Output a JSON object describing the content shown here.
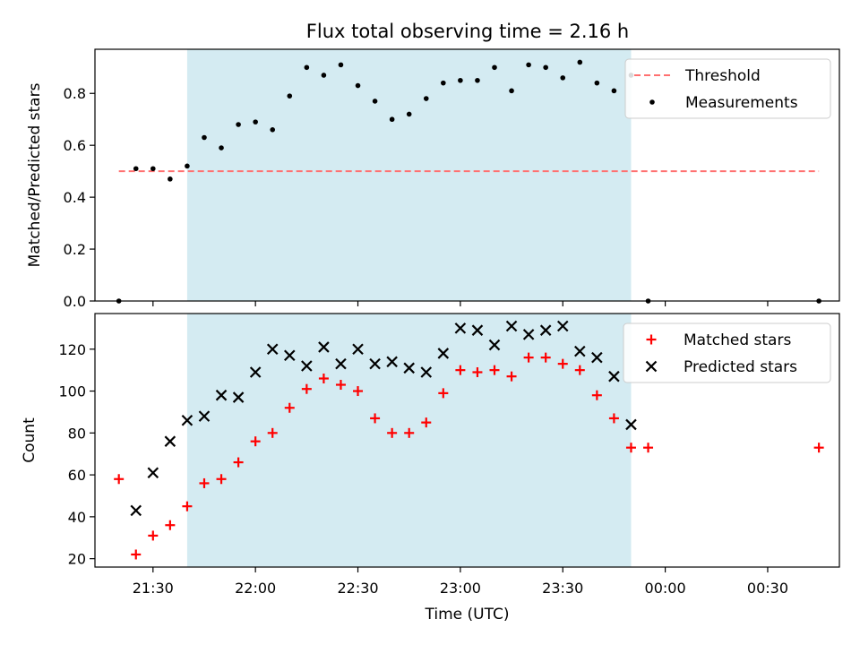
{
  "title": "Flux total observing time = 2.16 h",
  "chart_data": [
    {
      "type": "scatter",
      "ylabel": "Matched/Predicted stars",
      "ylim": [
        0,
        0.97
      ],
      "xlim": [
        "21:13",
        "00:51"
      ],
      "yticks": [
        0.0,
        0.2,
        0.4,
        0.6,
        0.8
      ],
      "ytick_labels": [
        "0.0",
        "0.2",
        "0.4",
        "0.6",
        "0.8"
      ],
      "shaded_interval": [
        "21:40",
        "23:50"
      ],
      "threshold": {
        "name": "Threshold",
        "value": 0.5,
        "x": [
          "21:20",
          "00:45"
        ],
        "color": "#ff7070"
      },
      "series": [
        {
          "name": "Measurements",
          "color": "#000000",
          "x": [
            "21:20",
            "21:25",
            "21:30",
            "21:35",
            "21:40",
            "21:45",
            "21:50",
            "21:55",
            "22:00",
            "22:05",
            "22:10",
            "22:15",
            "22:20",
            "22:25",
            "22:30",
            "22:35",
            "22:40",
            "22:45",
            "22:50",
            "22:55",
            "23:00",
            "23:05",
            "23:10",
            "23:15",
            "23:20",
            "23:25",
            "23:30",
            "23:35",
            "23:40",
            "23:45",
            "23:50",
            "23:55",
            "00:45"
          ],
          "y": [
            0.0,
            0.51,
            0.51,
            0.47,
            0.52,
            0.63,
            0.59,
            0.68,
            0.69,
            0.66,
            0.79,
            0.9,
            0.87,
            0.91,
            0.83,
            0.77,
            0.7,
            0.72,
            0.78,
            0.84,
            0.85,
            0.85,
            0.9,
            0.81,
            0.91,
            0.9,
            0.86,
            0.92,
            0.84,
            0.81,
            0.87,
            0.0,
            0.0
          ]
        }
      ]
    },
    {
      "type": "scatter",
      "xlabel": "Time (UTC)",
      "ylabel": "Count",
      "ylim": [
        16,
        137
      ],
      "xlim": [
        "21:13",
        "00:51"
      ],
      "yticks": [
        20,
        40,
        60,
        80,
        100,
        120
      ],
      "xticks": [
        "21:30",
        "22:00",
        "22:30",
        "23:00",
        "23:30",
        "00:00",
        "00:30"
      ],
      "shaded_interval": [
        "21:40",
        "23:50"
      ],
      "legend": "top-right",
      "series": [
        {
          "name": "Matched stars",
          "marker": "plus",
          "color": "#ff0000",
          "x": [
            "21:20",
            "21:25",
            "21:30",
            "21:35",
            "21:40",
            "21:45",
            "21:50",
            "21:55",
            "22:00",
            "22:05",
            "22:10",
            "22:15",
            "22:20",
            "22:25",
            "22:30",
            "22:35",
            "22:40",
            "22:45",
            "22:50",
            "22:55",
            "23:00",
            "23:05",
            "23:10",
            "23:15",
            "23:20",
            "23:25",
            "23:30",
            "23:35",
            "23:40",
            "23:45",
            "23:50",
            "23:55",
            "00:45"
          ],
          "y": [
            58,
            22,
            31,
            36,
            45,
            56,
            58,
            66,
            76,
            80,
            92,
            101,
            106,
            103,
            100,
            87,
            80,
            80,
            85,
            99,
            110,
            109,
            110,
            107,
            116,
            116,
            113,
            110,
            98,
            87,
            73,
            73,
            73
          ]
        },
        {
          "name": "Predicted stars",
          "marker": "x",
          "color": "#000000",
          "x": [
            "21:25",
            "21:30",
            "21:35",
            "21:40",
            "21:45",
            "21:50",
            "21:55",
            "22:00",
            "22:05",
            "22:10",
            "22:15",
            "22:20",
            "22:25",
            "22:30",
            "22:35",
            "22:40",
            "22:45",
            "22:50",
            "22:55",
            "23:00",
            "23:05",
            "23:10",
            "23:15",
            "23:20",
            "23:25",
            "23:30",
            "23:35",
            "23:40",
            "23:45",
            "23:50"
          ],
          "y": [
            43,
            61,
            76,
            86,
            88,
            98,
            97,
            109,
            120,
            117,
            112,
            121,
            113,
            120,
            113,
            114,
            111,
            109,
            118,
            130,
            129,
            122,
            131,
            127,
            129,
            131,
            119,
            116,
            107,
            84
          ]
        }
      ]
    }
  ],
  "style": {
    "shade_color": "#add8e6"
  }
}
